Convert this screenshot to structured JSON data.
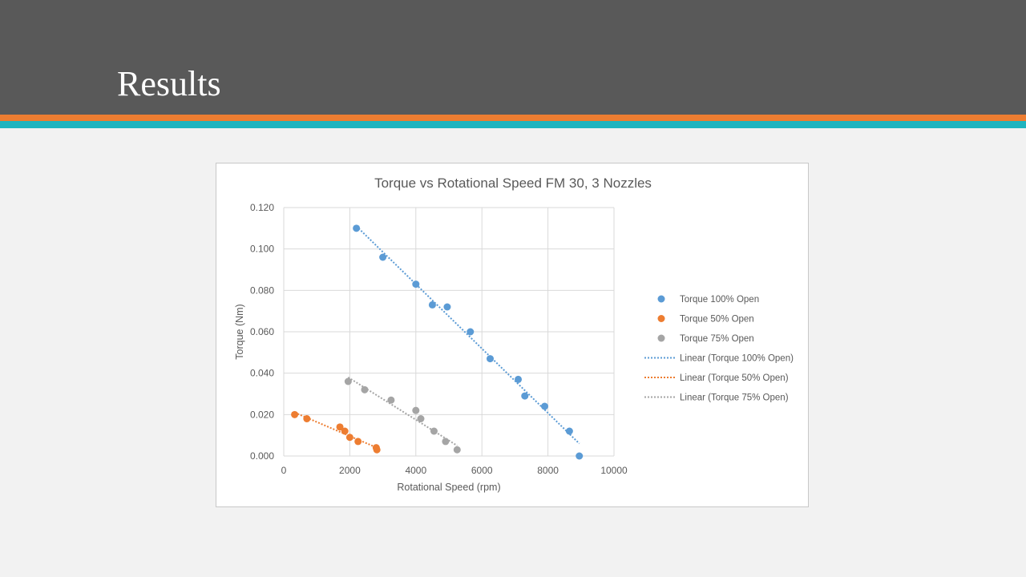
{
  "slide": {
    "title": "Results"
  },
  "colors": {
    "header_bg": "#595959",
    "stripe_orange": "#ed7d31",
    "stripe_teal": "#1fb4bf",
    "series_blue": "#5b9bd5",
    "series_orange": "#ed7d31",
    "series_gray": "#a5a5a5"
  },
  "chart_data": {
    "type": "scatter",
    "title": "Torque vs Rotational Speed FM 30, 3 Nozzles",
    "xlabel": "Rotational Speed (rpm)",
    "ylabel": "Torque (Nm)",
    "xlim": [
      0,
      10000
    ],
    "ylim": [
      0,
      0.12
    ],
    "x_ticks": [
      "0",
      "2000",
      "4000",
      "6000",
      "8000",
      "10000"
    ],
    "y_ticks": [
      "0.000",
      "0.020",
      "0.040",
      "0.060",
      "0.080",
      "0.100",
      "0.120"
    ],
    "grid": true,
    "legend_position": "right",
    "series": [
      {
        "name": "Torque 100% Open",
        "color": "#5b9bd5",
        "x": [
          2200,
          3000,
          4000,
          4500,
          4950,
          5650,
          6250,
          7100,
          7300,
          7900,
          8650,
          8950
        ],
        "y": [
          0.11,
          0.096,
          0.083,
          0.073,
          0.072,
          0.06,
          0.047,
          0.037,
          0.029,
          0.024,
          0.012,
          0.0
        ]
      },
      {
        "name": "Torque 50% Open",
        "color": "#ed7d31",
        "x": [
          330,
          700,
          1700,
          1850,
          2000,
          2250,
          2800,
          2820
        ],
        "y": [
          0.02,
          0.018,
          0.014,
          0.012,
          0.009,
          0.007,
          0.004,
          0.003
        ]
      },
      {
        "name": "Torque 75% Open",
        "color": "#a5a5a5",
        "x": [
          1950,
          2450,
          3250,
          4000,
          4150,
          4550,
          4900,
          5250
        ],
        "y": [
          0.036,
          0.032,
          0.027,
          0.022,
          0.018,
          0.012,
          0.007,
          0.003
        ]
      }
    ],
    "trendlines": [
      {
        "name": "Linear (Torque 100% Open)",
        "color": "#5b9bd5",
        "x": [
          2200,
          8950
        ],
        "y": [
          0.111,
          0.006
        ]
      },
      {
        "name": "Linear (Torque 50% Open)",
        "color": "#ed7d31",
        "x": [
          330,
          2820
        ],
        "y": [
          0.021,
          0.004
        ]
      },
      {
        "name": "Linear (Torque 75% Open)",
        "color": "#a5a5a5",
        "x": [
          1950,
          5250
        ],
        "y": [
          0.038,
          0.005
        ]
      }
    ]
  }
}
